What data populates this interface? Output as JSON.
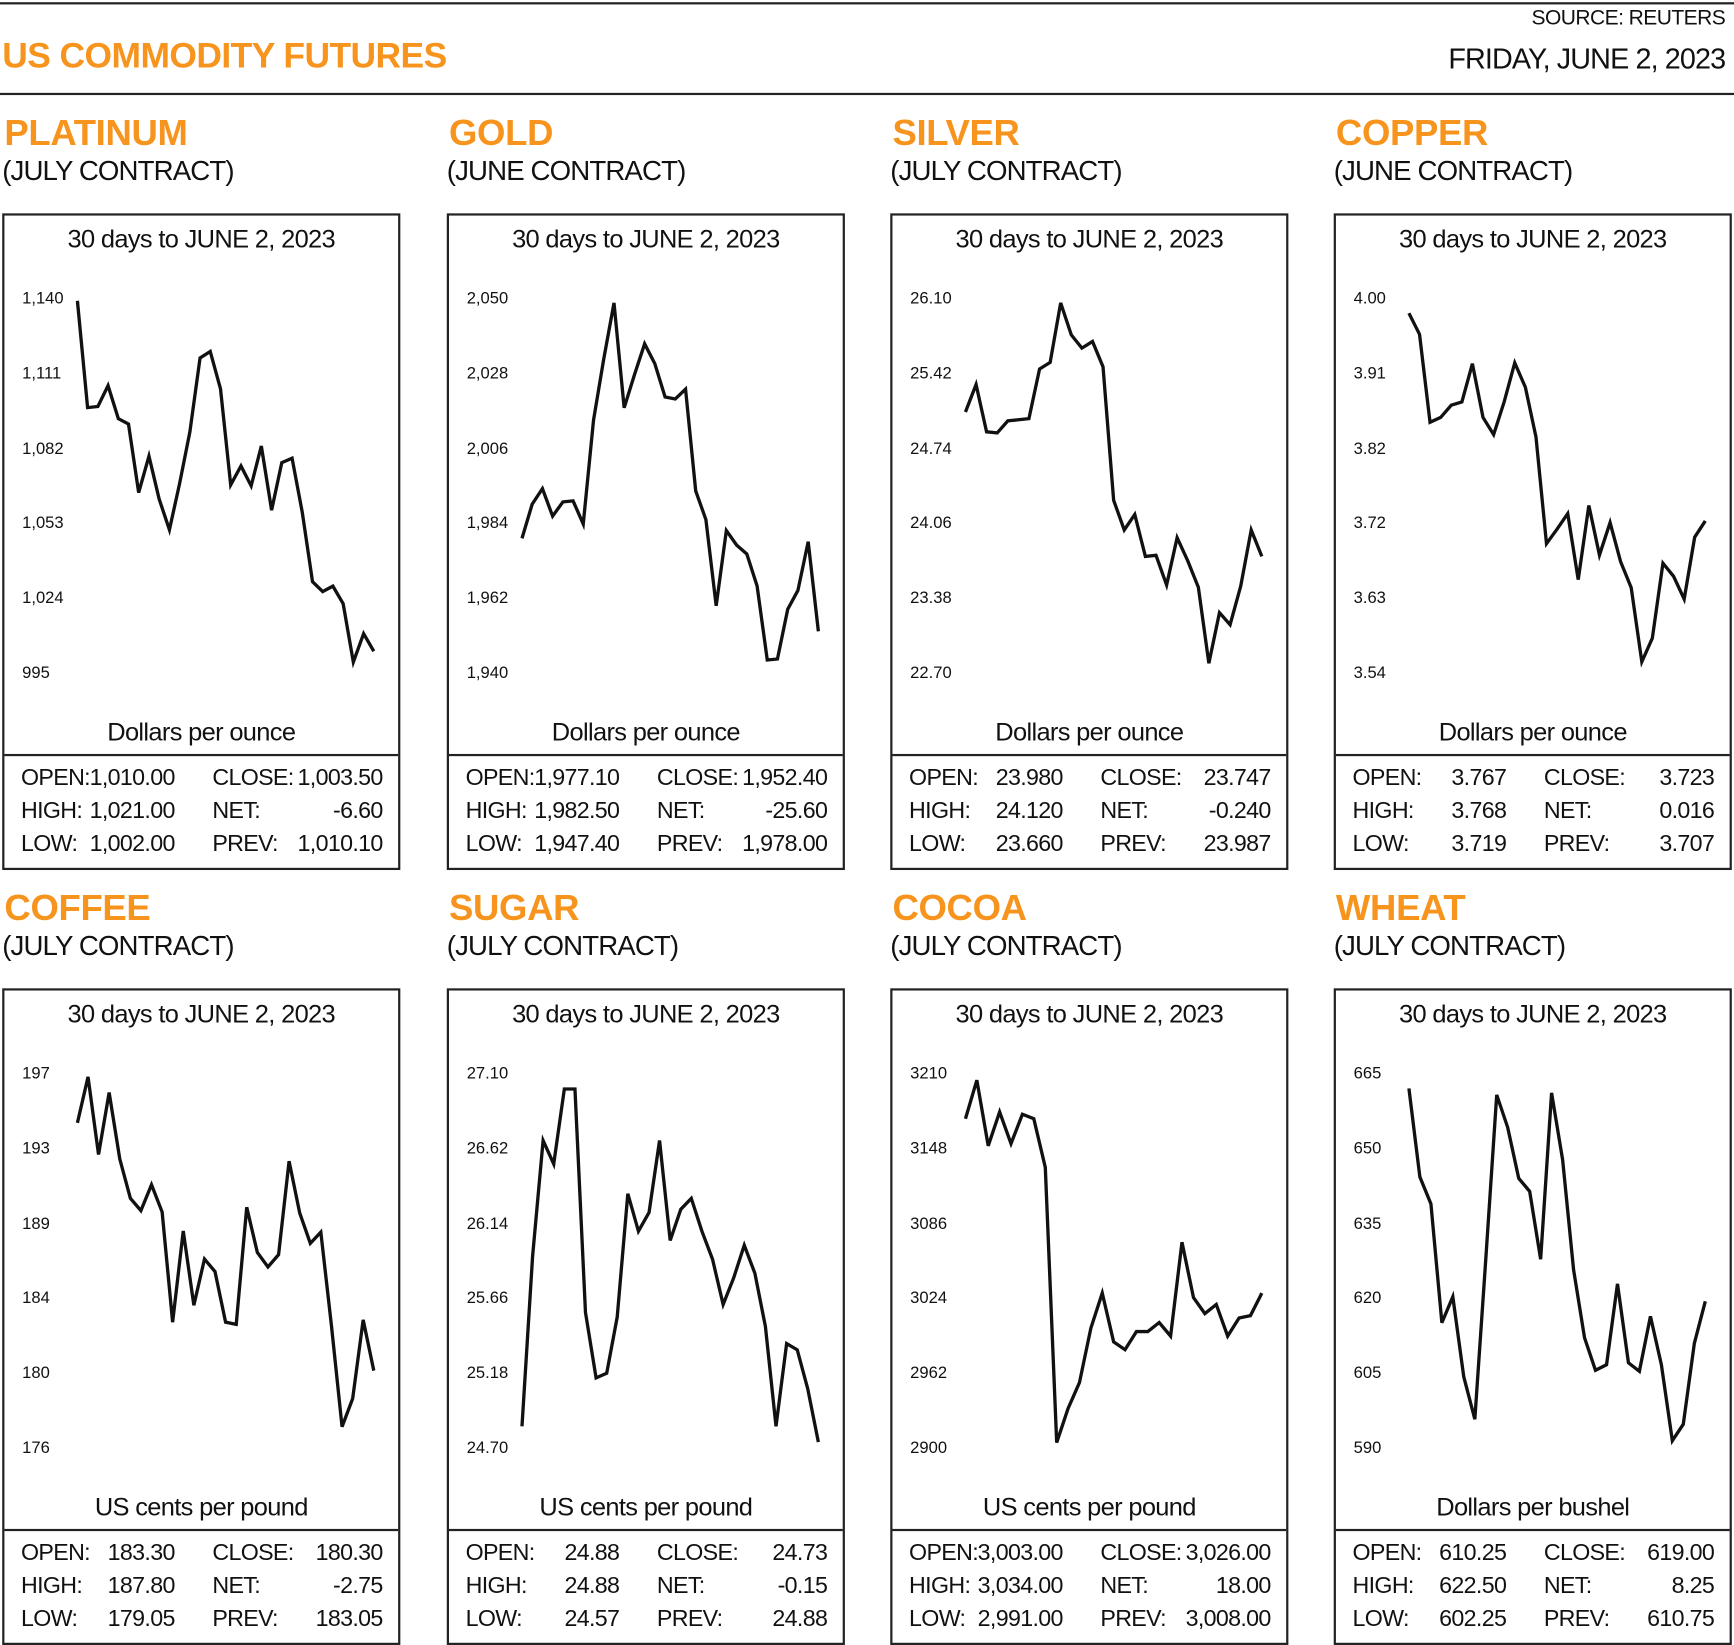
{
  "header": {
    "source": "SOURCE: REUTERS",
    "title": "US COMMODITY FUTURES",
    "date": "FRIDAY, JUNE 2, 2023",
    "accent_color": "#f7941d"
  },
  "labels": {
    "open": "OPEN:",
    "high": "HIGH:",
    "low": "LOW:",
    "close": "CLOSE:",
    "net": "NET:",
    "prev": "PREV:"
  },
  "chart_data": [
    {
      "type": "line",
      "name": "PLATINUM",
      "contract": "(JULY CONTRACT)",
      "title": "30 days to JUNE 2, 2023",
      "ylabel": "Dollars per ounce",
      "yticks": [
        "1,140",
        "1,111",
        "1,082",
        "1,053",
        "1,024",
        "995"
      ],
      "ylim": [
        995,
        1140
      ],
      "values": [
        1139.1,
        1097.8,
        1098.2,
        1106.3,
        1093.5,
        1091.4,
        1064.9,
        1079,
        1062.4,
        1050.5,
        1068.4,
        1088.4,
        1117,
        1119.5,
        1105,
        1067.9,
        1075.2,
        1067.5,
        1082.9,
        1058.1,
        1076.5,
        1078.2,
        1057.3,
        1030.4,
        1026.6,
        1028.7,
        1021.9,
        999.3,
        1010.3,
        1003.5
      ],
      "stats": {
        "open": "1,010.00",
        "high": "1,021.00",
        "low": "1,002.00",
        "close": "1,003.50",
        "net": "-6.60",
        "prev": "1,010.10"
      }
    },
    {
      "type": "line",
      "name": "GOLD",
      "contract": "(JUNE CONTRACT)",
      "title": "30 days to JUNE 2, 2023",
      "ylabel": "Dollars per ounce",
      "yticks": [
        "2,050",
        "2,028",
        "2,006",
        "1,984",
        "1,962",
        "1,940"
      ],
      "ylim": [
        1940,
        2050
      ],
      "values": [
        1979.6,
        1989.6,
        1994.2,
        1986.1,
        1990.3,
        1990.6,
        1983.8,
        2014.3,
        2032.2,
        2048.7,
        2017.9,
        2027.6,
        2036.7,
        2030.9,
        2021.1,
        2020.5,
        2023.4,
        1993.5,
        1985.1,
        1959.8,
        1981.9,
        1977.6,
        1975,
        1965.6,
        1943.9,
        1944.2,
        1958.8,
        1964.3,
        1978.6,
        1952.3
      ],
      "stats": {
        "open": "1,977.10",
        "high": "1,982.50",
        "low": "1,947.40",
        "close": "1,952.40",
        "net": "-25.60",
        "prev": "1,978.00"
      }
    },
    {
      "type": "line",
      "name": "SILVER",
      "contract": "(JULY CONTRACT)",
      "title": "30 days to JUNE 2, 2023",
      "ylabel": "Dollars per ounce",
      "yticks": [
        "26.10",
        "25.42",
        "24.74",
        "24.06",
        "23.38",
        "22.70"
      ],
      "ylim": [
        22.7,
        26.1
      ],
      "values": [
        25.07,
        25.32,
        24.89,
        24.88,
        24.99,
        25.0,
        25.01,
        25.46,
        25.52,
        26.06,
        25.77,
        25.65,
        25.71,
        25.48,
        24.27,
        24.0,
        24.14,
        23.76,
        23.77,
        23.5,
        23.93,
        23.72,
        23.48,
        22.79,
        23.25,
        23.14,
        23.49,
        24.0,
        23.76
      ],
      "stats": {
        "open": "23.980",
        "high": "24.120",
        "low": "23.660",
        "close": "23.747",
        "net": "-0.240",
        "prev": "23.987"
      }
    },
    {
      "type": "line",
      "name": "COPPER",
      "contract": "(JUNE CONTRACT)",
      "title": "30 days to JUNE 2, 2023",
      "ylabel": "Dollars per ounce",
      "yticks": [
        "4.00",
        "3.91",
        "3.82",
        "3.72",
        "3.63",
        "3.54"
      ],
      "ylim": [
        3.54,
        4.0
      ],
      "values": [
        3.982,
        3.956,
        3.848,
        3.854,
        3.869,
        3.873,
        3.92,
        3.854,
        3.833,
        3.873,
        3.921,
        3.891,
        3.83,
        3.699,
        3.717,
        3.736,
        3.655,
        3.746,
        3.685,
        3.725,
        3.677,
        3.645,
        3.554,
        3.583,
        3.675,
        3.659,
        3.631,
        3.707,
        3.727
      ],
      "stats": {
        "open": "3.767",
        "high": "3.768",
        "low": "3.719",
        "close": "3.723",
        "net": "0.016",
        "prev": "3.707"
      }
    },
    {
      "type": "line",
      "name": "COFFEE",
      "contract": "(JULY CONTRACT)",
      "title": "30 days to JUNE 2, 2023",
      "ylabel": "US cents per pound",
      "yticks": [
        "197",
        "193",
        "189",
        "184",
        "180",
        "176"
      ],
      "ylim": [
        176,
        197
      ],
      "values": [
        194.23,
        196.81,
        192.46,
        195.93,
        192.21,
        190.0,
        189.31,
        190.76,
        189.24,
        183.06,
        188.17,
        184.01,
        186.6,
        185.9,
        183.06,
        182.94,
        189.5,
        186.97,
        186.15,
        186.85,
        192.08,
        189.18,
        187.48,
        188.11,
        182.87,
        177.2,
        178.78,
        183.19,
        180.35
      ],
      "stats": {
        "open": "183.30",
        "high": "187.80",
        "low": "179.05",
        "close": "180.30",
        "net": "-2.75",
        "prev": "183.05"
      }
    },
    {
      "type": "line",
      "name": "SUGAR",
      "contract": "(JULY CONTRACT)",
      "title": "30 days to JUNE 2, 2023",
      "ylabel": "US cents per pound",
      "yticks": [
        "27.10",
        "26.62",
        "26.14",
        "25.66",
        "25.18",
        "24.70"
      ],
      "ylim": [
        24.7,
        27.1
      ],
      "values": [
        24.84,
        25.93,
        26.67,
        26.52,
        27.0,
        27.0,
        25.57,
        25.15,
        25.18,
        25.54,
        26.33,
        26.09,
        26.21,
        26.67,
        26.03,
        26.23,
        26.3,
        26.09,
        25.91,
        25.62,
        25.79,
        26.0,
        25.82,
        25.48,
        24.84,
        25.37,
        25.33,
        25.08,
        24.74
      ],
      "stats": {
        "open": "24.88",
        "high": "24.88",
        "low": "24.57",
        "close": "24.73",
        "net": "-0.15",
        "prev": "24.88"
      }
    },
    {
      "type": "line",
      "name": "COCOA",
      "contract": "(JULY CONTRACT)",
      "title": "30 days to JUNE 2, 2023",
      "ylabel": "US cents per pound",
      "yticks": [
        "3210",
        "3148",
        "3086",
        "3024",
        "2962",
        "2900"
      ],
      "ylim": [
        2900,
        3210
      ],
      "values": [
        3172.5,
        3204.4,
        3150.1,
        3178.2,
        3151.9,
        3176.3,
        3172.5,
        3132.3,
        2904.7,
        2932.8,
        2954.3,
        2999.3,
        3028.3,
        2988.0,
        2981.5,
        2996.5,
        2996.5,
        3004,
        2992.7,
        3070.4,
        3024.6,
        3011.4,
        3018.9,
        2992.7,
        3007.7,
        3009.6,
        3028.3
      ],
      "stats": {
        "open": "3,003.00",
        "high": "3,034.00",
        "low": "2,991.00",
        "close": "3,026.00",
        "net": "18.00",
        "prev": "3,008.00"
      }
    },
    {
      "type": "line",
      "name": "WHEAT",
      "contract": "(JULY CONTRACT)",
      "title": "30 days to JUNE 2, 2023",
      "ylabel": "Dollars per bushel",
      "yticks": [
        "665",
        "650",
        "635",
        "620",
        "605",
        "590"
      ],
      "ylim": [
        590,
        665
      ],
      "values": [
        662.0,
        644.3,
        638.9,
        615.1,
        620.3,
        604.3,
        595.8,
        627.8,
        660.7,
        654.2,
        644.0,
        641.4,
        627.8,
        661.1,
        647.7,
        625.7,
        612.1,
        605.6,
        606.7,
        622.9,
        607.1,
        605.4,
        616.4,
        606.7,
        591.5,
        594.8,
        611.0,
        619.4
      ],
      "stats": {
        "open": "610.25",
        "high": "622.50",
        "low": "602.25",
        "close": "619.00",
        "net": "8.25",
        "prev": "610.75"
      }
    }
  ]
}
